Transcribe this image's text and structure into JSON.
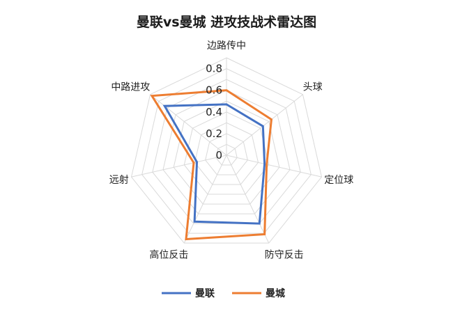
{
  "chart_data": {
    "type": "radar",
    "title": "曼联vs曼城 进攻技战术雷达图",
    "categories": [
      "边路传中",
      "头球",
      "定位球",
      "防守反击",
      "高位反击",
      "远射",
      "中路进攻"
    ],
    "series": [
      {
        "name": "曼联",
        "color": "#4472C4",
        "values": [
          0.47,
          0.43,
          0.36,
          0.7,
          0.68,
          0.28,
          0.73
        ]
      },
      {
        "name": "曼城",
        "color": "#ED7D31",
        "values": [
          0.6,
          0.53,
          0.38,
          0.81,
          0.86,
          0.31,
          0.88
        ]
      }
    ],
    "rlim": [
      0,
      0.9
    ],
    "tick_labels": [
      "0",
      "0.2",
      "0.4",
      "0.6",
      "0.8"
    ],
    "tick_values": [
      0,
      0.2,
      0.4,
      0.6,
      0.8
    ],
    "grid": true,
    "grid_step": 0.1,
    "legend": "bottom"
  }
}
